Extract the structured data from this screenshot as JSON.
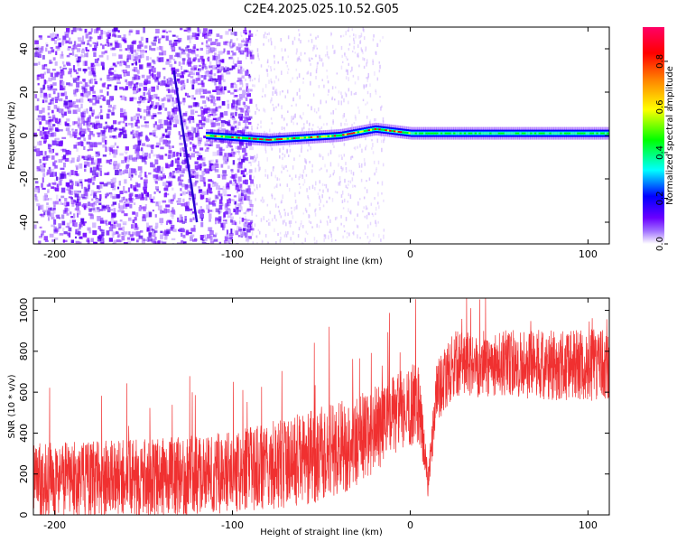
{
  "title": "C2E4.2025.025.10.52.G05",
  "chart_data": [
    {
      "type": "heatmap",
      "xlabel": "Height of straight line (km)",
      "ylabel": "Frequency (Hz)",
      "xlim": [
        -212,
        112
      ],
      "ylim": [
        -50,
        50
      ],
      "xticks": [
        -200,
        -100,
        0,
        100
      ],
      "yticks": [
        40,
        20,
        0,
        -20,
        -40
      ],
      "colorbar": {
        "label": "Normalized spectral amplitude",
        "range": [
          0,
          0.95
        ],
        "ticks": [
          "0.0",
          "0.2",
          "0.4",
          "0.6",
          "0.8"
        ],
        "tick_values": [
          0,
          0.2,
          0.4,
          0.6,
          0.8
        ],
        "colormap": [
          "#ffffff",
          "#6a00ff",
          "#0000ff",
          "#00ffff",
          "#00ff00",
          "#ffff00",
          "#ff8000",
          "#ff0000",
          "#ff0066"
        ]
      },
      "features": {
        "noise_region_km": [
          -212,
          -100
        ],
        "carrier_start_km": -115,
        "carrier_freq_profile": [
          {
            "x": -115,
            "y": 0
          },
          {
            "x": -80,
            "y": -2
          },
          {
            "x": -60,
            "y": -1
          },
          {
            "x": -40,
            "y": 0
          },
          {
            "x": -20,
            "y": 3
          },
          {
            "x": -10,
            "y": 2
          },
          {
            "x": 0,
            "y": 1
          },
          {
            "x": 112,
            "y": 1
          }
        ],
        "diagonal_streak": {
          "x1": -133,
          "y1": 30,
          "x2": -120,
          "y2": -40
        }
      }
    },
    {
      "type": "line",
      "xlabel": "Height of straight line (km)",
      "ylabel": "SNR (10 * v/v)",
      "xlim": [
        -212,
        112
      ],
      "ylim": [
        0,
        1060
      ],
      "xticks": [
        -200,
        -100,
        0,
        100
      ],
      "yticks": [
        0,
        200,
        400,
        600,
        800,
        1000
      ],
      "series_color": "#f03030",
      "envelope": [
        {
          "x": -212,
          "mean": 170,
          "spread": 180
        },
        {
          "x": -150,
          "mean": 180,
          "spread": 190
        },
        {
          "x": -100,
          "mean": 210,
          "spread": 200
        },
        {
          "x": -60,
          "mean": 270,
          "spread": 230
        },
        {
          "x": -30,
          "mean": 360,
          "spread": 230
        },
        {
          "x": -10,
          "mean": 480,
          "spread": 200
        },
        {
          "x": 5,
          "mean": 560,
          "spread": 200
        },
        {
          "x": 10,
          "mean": 150,
          "spread": 60
        },
        {
          "x": 15,
          "mean": 600,
          "spread": 150
        },
        {
          "x": 25,
          "mean": 740,
          "spread": 160
        },
        {
          "x": 112,
          "mean": 730,
          "spread": 180
        }
      ]
    }
  ]
}
